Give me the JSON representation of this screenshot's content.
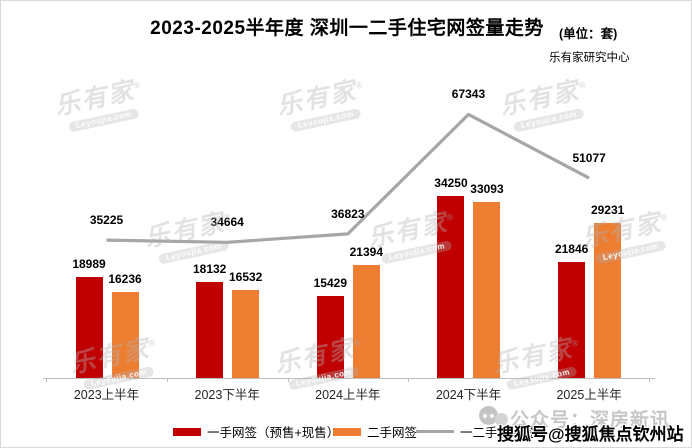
{
  "page": {
    "title": "2023-2025半年度 深圳一二手住宅网签量走势",
    "unit_note": "(单位：套)",
    "source": "乐有家研究中心"
  },
  "chart_data": {
    "type": "bar",
    "title": "2023-2025半年度 深圳一二手住宅网签量走势",
    "xlabel": "",
    "ylabel": "套",
    "categories": [
      "2023上半年",
      "2023下半年",
      "2024上半年",
      "2024下半年",
      "2025上半年"
    ],
    "series": [
      {
        "name": "一手网签（预售+现售）",
        "type": "bar",
        "color": "#C00000",
        "values": [
          18989,
          18132,
          15429,
          34250,
          21846
        ]
      },
      {
        "name": "二手网签",
        "type": "bar",
        "color": "#ED7D31",
        "values": [
          16236,
          16532,
          21394,
          33093,
          29231
        ]
      },
      {
        "name": "一二手总网签",
        "type": "line",
        "color": "#A6A6A6",
        "values": [
          35225,
          34664,
          36823,
          67343,
          51077
        ]
      }
    ],
    "legend_position": "bottom",
    "axis_visible": false,
    "grid": false,
    "data_labels": true
  },
  "watermark": {
    "brand": "乐有家",
    "domain": "Leyoujia.com",
    "reg": "®"
  },
  "overlay": {
    "wechat": "公众号：深房新讯",
    "sohu": "搜狐号@搜狐焦点钦州站"
  }
}
